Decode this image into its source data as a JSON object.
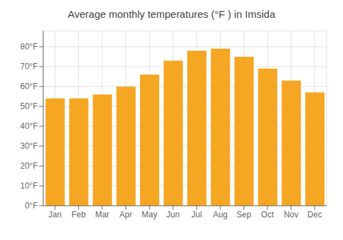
{
  "chart_data": {
    "type": "bar",
    "title": "Average monthly temperatures (°F ) in Imsida",
    "categories": [
      "Jan",
      "Feb",
      "Mar",
      "Apr",
      "May",
      "Jun",
      "Jul",
      "Aug",
      "Sep",
      "Oct",
      "Nov",
      "Dec"
    ],
    "values": [
      54,
      54,
      56,
      60,
      66,
      73,
      78,
      79,
      75,
      69,
      63,
      57
    ],
    "color": "#F5A623",
    "ylim": [
      0,
      88
    ],
    "yticks": [
      {
        "value": 0,
        "label": "0°F"
      },
      {
        "value": 10,
        "label": "10°F"
      },
      {
        "value": 20,
        "label": "20°F"
      },
      {
        "value": 30,
        "label": "30°F"
      },
      {
        "value": 40,
        "label": "40°F"
      },
      {
        "value": 50,
        "label": "50°F"
      },
      {
        "value": 60,
        "label": "60°F"
      },
      {
        "value": 70,
        "label": "70°F"
      },
      {
        "value": 80,
        "label": "80°F"
      }
    ],
    "grid": true
  }
}
